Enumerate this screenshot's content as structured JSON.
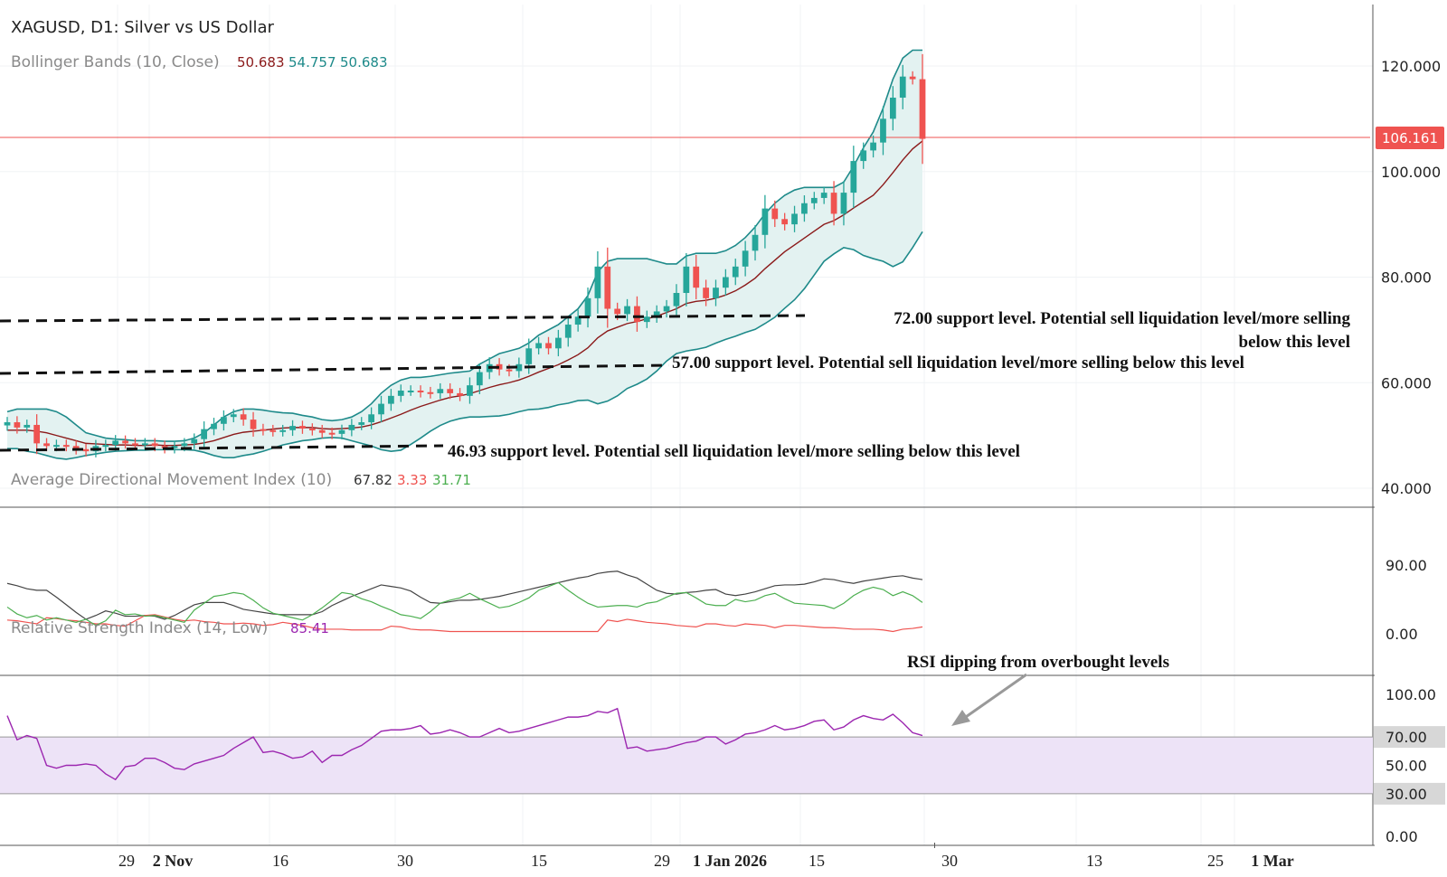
{
  "colors": {
    "up": "#26a69a",
    "down": "#ef5350",
    "bb_basis": "#8b1a1a",
    "bb_band": "#1e8a8a",
    "bb_fill": "#e3f2f1",
    "adx": "#444444",
    "minus_di": "#ef5350",
    "plus_di": "#4caf50",
    "rsi": "#9c27b0",
    "rsi_zone": "#ede3f7",
    "price_line": "#ef5350"
  },
  "header": {
    "symbol": "XAGUSD, D1: Silver vs US Dollar",
    "bb_label": "Bollinger Bands (10, Close)",
    "bb_v1": "50.683",
    "bb_v2": "54.757",
    "bb_v3": "50.683"
  },
  "adx_header": {
    "label": "Average Directional Movement Index (10)",
    "v1": "67.82",
    "v2": "3.33",
    "v3": "31.71"
  },
  "rsi_header": {
    "label": "Relative Strength Index (14, Low)",
    "v1": "85.41"
  },
  "annotations": {
    "s72_line1": "72.00 support level. Potential sell liquidation level/more selling",
    "s72_line2": "below this level",
    "s57": "57.00 support level. Potential sell liquidation level/more selling below this level",
    "s4693": "46.93 support level. Potential sell liquidation level/more selling below this level",
    "rsi_note": "RSI dipping from overbought levels"
  },
  "chart_data": [
    {
      "type": "candlestick",
      "title": "XAGUSD, D1: Silver vs US Dollar",
      "ylim": [
        36,
        130
      ],
      "price_ticks": [
        "120.000",
        "100.000",
        "80.000",
        "60.000",
        "40.000"
      ],
      "last_price": "106.161",
      "support_levels": [
        72.0,
        57.0,
        46.93
      ],
      "x_labels": [
        "29",
        "2 Nov",
        "16",
        "30",
        "15",
        "29",
        "1 Jan 2026",
        "15",
        "30",
        "13",
        "25",
        "1 Mar"
      ],
      "close": [
        52.5,
        51.5,
        52.0,
        48.5,
        48.0,
        48.2,
        48.0,
        47.4,
        47.0,
        48.0,
        48.2,
        49.0,
        48.5,
        48.2,
        48.5,
        48.0,
        47.6,
        48.0,
        48.5,
        49.3,
        51.2,
        52.2,
        53.5,
        54.0,
        53.0,
        51.2,
        51.0,
        50.8,
        51.0,
        51.8,
        51.3,
        51.0,
        50.5,
        50.3,
        51.0,
        52.0,
        52.5,
        54.0,
        56.0,
        57.5,
        58.5,
        58.5,
        58.2,
        58.0,
        58.8,
        58.0,
        57.5,
        59.5,
        62.0,
        63.5,
        62.5,
        62.2,
        63.5,
        66.5,
        67.5,
        66.5,
        68.5,
        71.0,
        72.5,
        76.0,
        82.0,
        74.0,
        73.0,
        74.5,
        71.5,
        72.5,
        73.5,
        74.5,
        77.0,
        82.0,
        78.0,
        76.0,
        78.0,
        80.0,
        82.0,
        85.0,
        88.0,
        93.0,
        91.0,
        90.0,
        92.0,
        94.0,
        95.0,
        96.0,
        92.0,
        96.0,
        102.0,
        104.0,
        105.5,
        110.0,
        114.0,
        118.0,
        117.5,
        106.2
      ]
    },
    {
      "type": "line",
      "title": "Bollinger Bands (10, Close)",
      "series": [
        {
          "name": "basis",
          "values": [
            51.0,
            51.0,
            51.0,
            50.8,
            50.5,
            50.0,
            49.5,
            49.0,
            48.5,
            48.4,
            48.3,
            48.2,
            48.2,
            48.1,
            48.1,
            48.2,
            48.1,
            48.1,
            48.2,
            48.3,
            48.6,
            49.0,
            49.6,
            50.2,
            50.6,
            50.8,
            51.0,
            51.2,
            51.4,
            51.5,
            51.5,
            51.5,
            51.3,
            51.2,
            51.3,
            51.4,
            51.6,
            52.0,
            52.6,
            53.3,
            54.0,
            54.8,
            55.5,
            56.1,
            56.7,
            57.2,
            57.5,
            57.9,
            58.5,
            59.1,
            59.6,
            60.0,
            60.5,
            61.2,
            62.0,
            62.7,
            63.4,
            64.3,
            65.3,
            66.6,
            68.5,
            69.8,
            70.5,
            71.2,
            71.6,
            72.1,
            72.6,
            73.3,
            74.0,
            75.0,
            75.4,
            75.6,
            76.0,
            76.6,
            77.4,
            78.5,
            79.8,
            81.6,
            83.2,
            84.8,
            86.1,
            87.4,
            88.7,
            90.0,
            90.7,
            91.8,
            93.1,
            94.3,
            95.5,
            97.5,
            99.8,
            102.2,
            104.3,
            105.8
          ]
        },
        {
          "name": "upper",
          "values": [
            54.5,
            55.0,
            55.0,
            55.0,
            55.0,
            54.5,
            53.5,
            52.0,
            50.5,
            50.0,
            49.5,
            49.3,
            49.2,
            49.0,
            49.0,
            49.0,
            48.9,
            48.9,
            49.0,
            49.5,
            50.5,
            52.0,
            53.5,
            54.5,
            55.0,
            55.0,
            54.8,
            54.5,
            54.3,
            54.2,
            53.8,
            53.5,
            53.0,
            52.8,
            53.0,
            53.5,
            54.5,
            56.0,
            58.0,
            59.5,
            60.5,
            61.0,
            61.0,
            61.2,
            61.5,
            61.8,
            62.0,
            62.2,
            63.5,
            64.5,
            65.5,
            66.0,
            66.5,
            67.5,
            69.0,
            70.0,
            71.0,
            72.5,
            74.0,
            76.5,
            81.0,
            83.0,
            83.5,
            83.5,
            83.5,
            83.5,
            83.0,
            82.5,
            82.5,
            84.0,
            84.5,
            84.5,
            84.5,
            85.0,
            86.0,
            87.5,
            89.5,
            92.0,
            94.0,
            95.5,
            96.5,
            97.0,
            97.0,
            97.0,
            97.0,
            98.0,
            101.0,
            104.5,
            107.5,
            112.0,
            117.5,
            121.5,
            123.0,
            123.0
          ]
        },
        {
          "name": "lower",
          "values": [
            47.5,
            47.5,
            47.0,
            46.7,
            46.2,
            45.7,
            45.5,
            45.8,
            46.2,
            46.5,
            46.8,
            47.0,
            47.1,
            47.2,
            47.2,
            47.3,
            47.3,
            47.3,
            47.3,
            47.2,
            46.8,
            46.2,
            45.8,
            45.8,
            46.2,
            46.5,
            47.0,
            47.6,
            48.2,
            48.6,
            49.0,
            49.2,
            49.5,
            49.6,
            49.5,
            49.0,
            48.5,
            48.0,
            47.3,
            47.0,
            47.2,
            48.3,
            49.5,
            50.8,
            51.9,
            52.7,
            53.2,
            53.5,
            53.5,
            53.6,
            53.7,
            54.0,
            54.5,
            54.9,
            55.0,
            55.3,
            55.8,
            56.1,
            56.6,
            56.7,
            56.0,
            56.5,
            57.5,
            58.9,
            59.7,
            60.7,
            62.2,
            64.1,
            65.5,
            66.0,
            66.3,
            66.7,
            67.5,
            68.2,
            68.8,
            69.5,
            70.1,
            71.2,
            72.4,
            74.1,
            75.7,
            77.8,
            80.4,
            83.0,
            84.4,
            85.6,
            85.2,
            84.1,
            83.5,
            83.0,
            82.0,
            82.9,
            85.6,
            88.6
          ]
        }
      ]
    },
    {
      "type": "line",
      "title": "Average Directional Movement Index (10)",
      "yticks": [
        "90.00",
        "0.00"
      ],
      "ylim": [
        -20,
        135
      ],
      "series": [
        {
          "name": "ADX",
          "values": [
            66,
            63,
            59,
            57,
            57,
            48,
            38,
            28,
            19,
            24,
            30,
            27,
            23,
            23,
            24,
            23,
            19,
            24,
            31,
            38,
            41,
            41,
            41,
            37,
            32,
            30,
            28,
            26,
            25,
            25,
            25,
            25,
            29,
            37,
            43,
            49,
            54,
            59,
            64,
            62,
            60,
            56,
            48,
            41,
            40,
            42,
            44,
            44,
            45,
            47,
            49,
            52,
            55,
            58,
            61,
            64,
            67,
            70,
            73,
            75,
            79,
            81,
            82,
            77,
            73,
            65,
            57,
            53,
            52,
            54,
            55,
            57,
            58,
            52,
            50,
            52,
            55,
            59,
            63,
            64,
            64,
            65,
            68,
            72,
            71,
            68,
            66,
            69,
            71,
            73,
            75,
            76,
            73,
            71
          ]
        },
        {
          "name": "-DI",
          "values": [
            18,
            17,
            15,
            13,
            21,
            20,
            18,
            17,
            15,
            13,
            13,
            11,
            10,
            17,
            24,
            25,
            22,
            19,
            17,
            18,
            16,
            15,
            13,
            13,
            14,
            13,
            11,
            12,
            15,
            13,
            11,
            8,
            6,
            6,
            6,
            5,
            5,
            5,
            5,
            10,
            9,
            6,
            5,
            5,
            4,
            3,
            3,
            3,
            3,
            3,
            3,
            3,
            3,
            3,
            3,
            3,
            3,
            3,
            3,
            3,
            3,
            18,
            16,
            19,
            17,
            15,
            14,
            13,
            11,
            10,
            9,
            13,
            13,
            11,
            10,
            13,
            12,
            11,
            8,
            11,
            11,
            10,
            9,
            8,
            8,
            7,
            6,
            6,
            6,
            5,
            3,
            6,
            7,
            9
          ]
        },
        {
          "name": "+DI",
          "values": [
            35,
            26,
            21,
            24,
            18,
            21,
            18,
            15,
            19,
            11,
            17,
            31,
            25,
            26,
            23,
            24,
            21,
            18,
            15,
            31,
            40,
            49,
            51,
            54,
            52,
            44,
            34,
            27,
            24,
            21,
            18,
            25,
            34,
            44,
            54,
            52,
            46,
            42,
            36,
            31,
            25,
            23,
            20,
            29,
            40,
            44,
            47,
            53,
            46,
            40,
            34,
            36,
            41,
            47,
            57,
            62,
            67,
            57,
            48,
            40,
            35,
            36,
            37,
            37,
            35,
            40,
            42,
            48,
            53,
            54,
            47,
            39,
            37,
            37,
            45,
            42,
            44,
            50,
            53,
            46,
            40,
            39,
            38,
            37,
            33,
            40,
            50,
            57,
            61,
            58,
            50,
            55,
            50,
            41
          ]
        }
      ]
    },
    {
      "type": "line",
      "title": "Relative Strength Index (14, Low)",
      "yticks": [
        "100.00",
        "70.00",
        "50.00",
        "30.00",
        "0.00"
      ],
      "ylim": [
        -8,
        110
      ],
      "overbought": 70,
      "oversold": 30,
      "series": [
        {
          "name": "RSI",
          "values": [
            85,
            68,
            71,
            69,
            50,
            48,
            50,
            50,
            51,
            50,
            44,
            40,
            49,
            50,
            55,
            55,
            52,
            48,
            47,
            51,
            53,
            55,
            57,
            62,
            66,
            70,
            59,
            60,
            58,
            55,
            56,
            60,
            52,
            57,
            57,
            61,
            64,
            69,
            74,
            75,
            75,
            76,
            78,
            72,
            73,
            75,
            73,
            70,
            70,
            73,
            76,
            73,
            74,
            76,
            78,
            80,
            82,
            84,
            84,
            85,
            88,
            87,
            90,
            62,
            63,
            60,
            61,
            62,
            64,
            66,
            67,
            70,
            70,
            65,
            68,
            72,
            73,
            75,
            78,
            75,
            76,
            78,
            81,
            82,
            75,
            77,
            82,
            85,
            83,
            82,
            86,
            80,
            73,
            71
          ]
        }
      ]
    }
  ]
}
